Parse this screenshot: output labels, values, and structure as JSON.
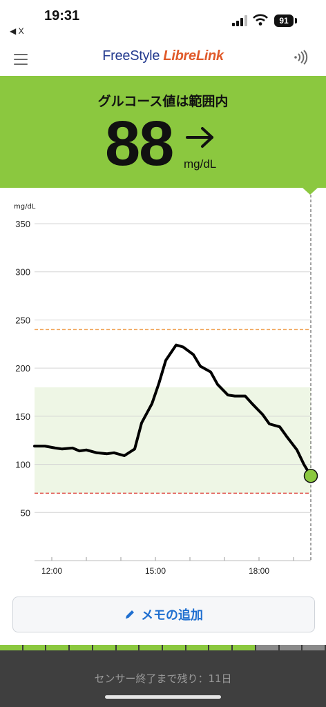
{
  "status_bar": {
    "time": "19:31",
    "back_label": "◀ X",
    "battery": "91"
  },
  "app_bar": {
    "logo_part1": "FreeStyle ",
    "logo_part2": "LibreLink"
  },
  "banner": {
    "title": "グルコース値は範囲内",
    "value": "88",
    "unit": "mg/dL",
    "trend": "steady-arrow-right",
    "color": "#8bc83f"
  },
  "chart_data": {
    "type": "line",
    "ylabel": "mg/dL",
    "ylim": [
      0,
      350
    ],
    "y_ticks": [
      "50",
      "100",
      "150",
      "200",
      "250",
      "300",
      "350"
    ],
    "x_ticks": [
      "12:00",
      "15:00",
      "18:00"
    ],
    "target_range": [
      70,
      180
    ],
    "high_threshold": 240,
    "low_threshold": 70,
    "line_color": "#000000",
    "current_point_color": "#8bc83f",
    "x": [
      11.5,
      11.8,
      12.1,
      12.3,
      12.6,
      12.8,
      13.0,
      13.3,
      13.6,
      13.8,
      14.1,
      14.4,
      14.6,
      14.9,
      15.1,
      15.3,
      15.6,
      15.8,
      16.1,
      16.3,
      16.6,
      16.8,
      17.1,
      17.3,
      17.6,
      17.8,
      18.1,
      18.3,
      18.6,
      18.8,
      19.1,
      19.3,
      19.5
    ],
    "y": [
      119,
      119,
      117,
      116,
      117,
      114,
      115,
      112,
      111,
      112,
      109,
      116,
      143,
      163,
      184,
      208,
      224,
      222,
      214,
      202,
      196,
      183,
      172,
      171,
      171,
      163,
      152,
      142,
      139,
      129,
      115,
      100,
      88
    ]
  },
  "memo_button": {
    "label": "メモの追加"
  },
  "sensor": {
    "remaining_text": "センサー終了まで残り：11日",
    "segments_total": 14,
    "segments_used": 11,
    "used_color": "#8bc83f",
    "remaining_color": "#8a8a8a"
  }
}
